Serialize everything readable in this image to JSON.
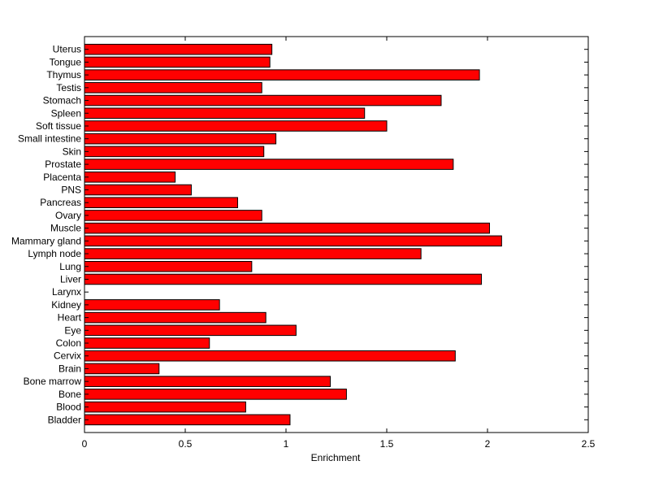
{
  "chart_data": {
    "type": "bar",
    "orientation": "horizontal",
    "title": "",
    "xlabel": "Enrichment",
    "ylabel": "",
    "xlim": [
      0,
      2.5
    ],
    "xticks": [
      0,
      0.5,
      1,
      1.5,
      2,
      2.5
    ],
    "xtick_labels": [
      "0",
      "0.5",
      "1",
      "1.5",
      "2",
      "2.5"
    ],
    "grid": false,
    "legend": "none",
    "bar_color": "#ff0000",
    "bar_edge_color": "#000000",
    "categories": [
      "Bladder",
      "Blood",
      "Bone",
      "Bone marrow",
      "Brain",
      "Cervix",
      "Colon",
      "Eye",
      "Heart",
      "Kidney",
      "Larynx",
      "Liver",
      "Lung",
      "Lymph node",
      "Mammary gland",
      "Muscle",
      "Ovary",
      "Pancreas",
      "PNS",
      "Placenta",
      "Prostate",
      "Skin",
      "Small intestine",
      "Soft tissue",
      "Spleen",
      "Stomach",
      "Testis",
      "Thymus",
      "Tongue",
      "Uterus"
    ],
    "values": [
      1.02,
      0.8,
      1.3,
      1.22,
      0.37,
      1.84,
      0.62,
      1.05,
      0.9,
      0.67,
      0.0,
      1.97,
      0.83,
      1.67,
      2.07,
      2.01,
      0.88,
      0.76,
      0.53,
      0.45,
      1.83,
      0.89,
      0.95,
      1.5,
      1.39,
      1.77,
      0.88,
      1.96,
      0.92,
      0.93
    ]
  }
}
